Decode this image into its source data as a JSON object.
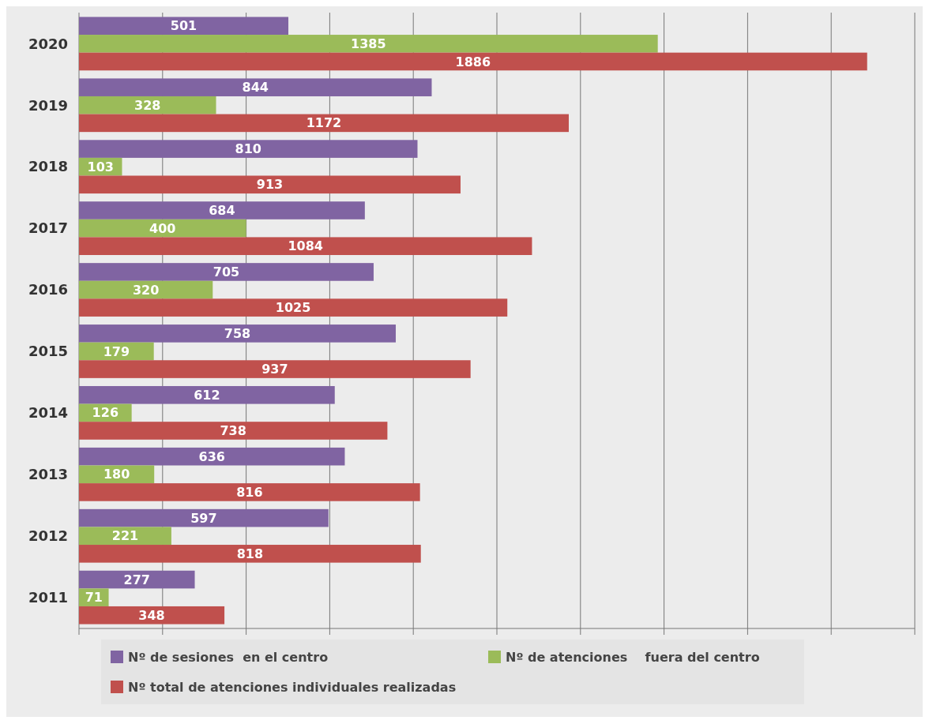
{
  "chart_data": {
    "type": "bar",
    "orientation": "horizontal",
    "categories": [
      "2020",
      "2019",
      "2018",
      "2017",
      "2016",
      "2015",
      "2014",
      "2013",
      "2012",
      "2011"
    ],
    "series": [
      {
        "name": "Nº de sesiones  en el centro",
        "color": "#8064a2",
        "values": [
          501,
          844,
          810,
          684,
          705,
          758,
          612,
          636,
          597,
          277
        ]
      },
      {
        "name": "Nº de atenciones    fuera del centro",
        "color": "#9bbb59",
        "values": [
          1385,
          328,
          103,
          400,
          320,
          179,
          126,
          180,
          221,
          71
        ]
      },
      {
        "name": "Nº total de atenciones individuales realizadas",
        "color": "#c0504d",
        "values": [
          1886,
          1172,
          913,
          1084,
          1025,
          937,
          738,
          816,
          818,
          348
        ]
      }
    ],
    "xlim": [
      0,
      2000
    ],
    "xticks": [
      {
        "value": 0,
        "label": null
      },
      {
        "value": 200,
        "label": null
      },
      {
        "value": 400,
        "label": null
      },
      {
        "value": 600,
        "label": null
      },
      {
        "value": 800,
        "label": null
      },
      {
        "value": 1000,
        "label": null
      },
      {
        "value": 1200,
        "label": null
      },
      {
        "value": 1400,
        "label": null
      },
      {
        "value": 1600,
        "label": null
      },
      {
        "value": 1800,
        "label": null
      },
      {
        "value": 2000,
        "label": null
      }
    ],
    "tick_labels": "y",
    "grid": "x",
    "data_labels": true,
    "legend": "bottom"
  }
}
